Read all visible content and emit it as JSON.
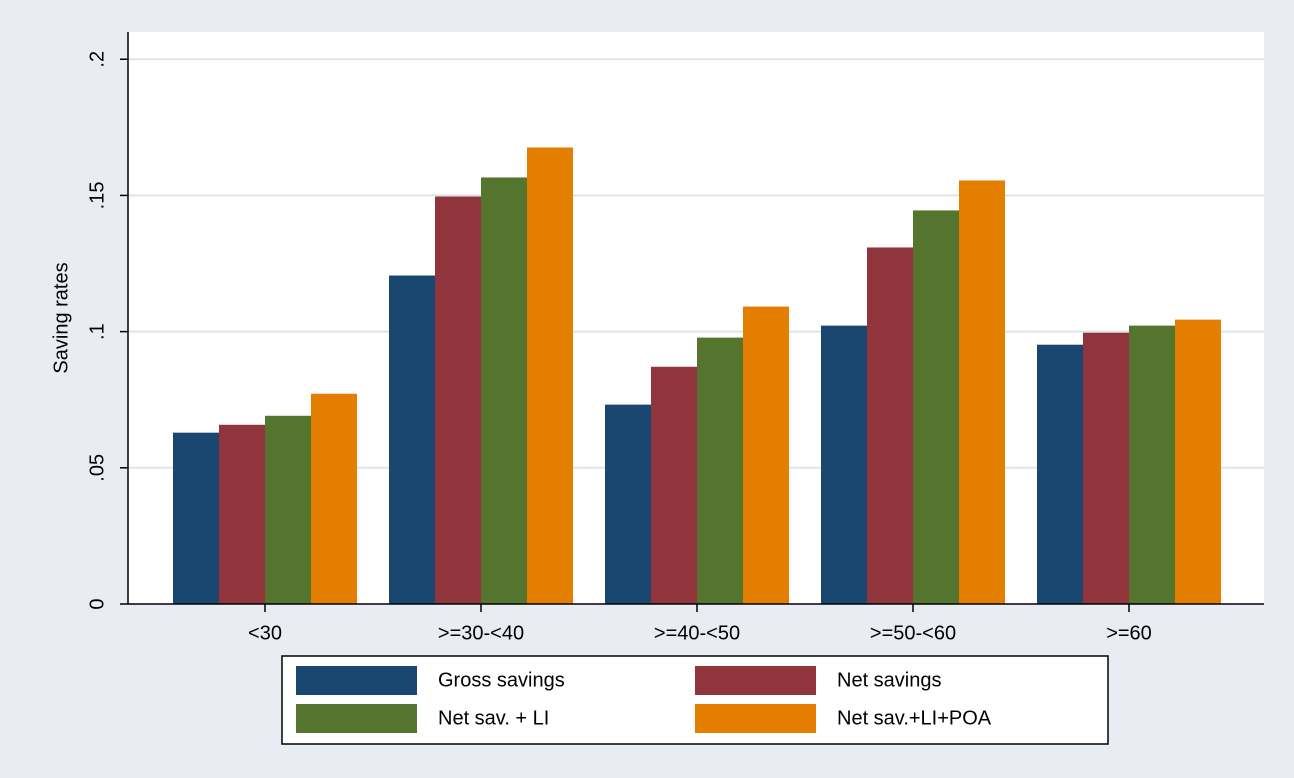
{
  "chart_data": {
    "type": "bar",
    "y_label": "Saving rates",
    "categories": [
      "<30",
      ">=30-<40",
      ">=40-<50",
      ">=50-<60",
      ">=60"
    ],
    "series": [
      {
        "name": "Gross savings",
        "color": "#1a476f",
        "values": [
          0.0629,
          0.1206,
          0.0732,
          0.1022,
          0.0952
        ]
      },
      {
        "name": "Net savings",
        "color": "#90353b",
        "values": [
          0.0658,
          0.1496,
          0.0871,
          0.1309,
          0.0996
        ]
      },
      {
        "name": "Net sav. + LI",
        "color": "#55752f",
        "values": [
          0.0691,
          0.1566,
          0.0978,
          0.1445,
          0.1022
        ]
      },
      {
        "name": "Net sav.+LI+POA",
        "color": "#e37e00",
        "values": [
          0.0772,
          0.1676,
          0.1092,
          0.1555,
          0.1044
        ]
      }
    ],
    "ylim": [
      0,
      0.21
    ],
    "yticks": [
      0,
      {
        "value": 0.05,
        "label": ".05"
      },
      {
        "value": 0.1,
        "label": ".1"
      },
      {
        "value": 0.15,
        "label": ".15"
      },
      {
        "value": 0.2,
        "label": ".2"
      }
    ],
    "grid": true,
    "legend": "bottom"
  }
}
